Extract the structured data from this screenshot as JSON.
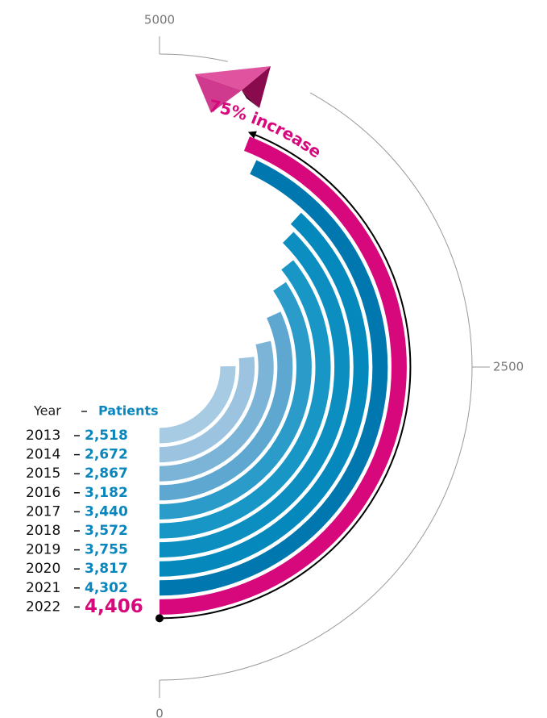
{
  "chart_data": {
    "type": "radial_bar",
    "category_header": "Year",
    "value_header": "Patients",
    "categories": [
      "2013",
      "2014",
      "2015",
      "2016",
      "2017",
      "2018",
      "2019",
      "2020",
      "2021",
      "2022"
    ],
    "values": [
      2518,
      2672,
      2867,
      3182,
      3440,
      3572,
      3755,
      3817,
      4302,
      4406
    ],
    "value_labels": [
      "2,518",
      "2,672",
      "2,867",
      "3,182",
      "3,440",
      "3,572",
      "3,755",
      "3,817",
      "4,302",
      "4,406"
    ],
    "colors": [
      "#a8cbe4",
      "#9cc4e0",
      "#7cb4d8",
      "#5ea7d1",
      "#2b9bc9",
      "#1897c6",
      "#0c8fc0",
      "#0588bb",
      "#0077ae",
      "#d6087c"
    ],
    "annotation": "75% increase",
    "ylim": [
      0,
      5000
    ],
    "yticks": [
      0,
      2500,
      5000
    ]
  }
}
